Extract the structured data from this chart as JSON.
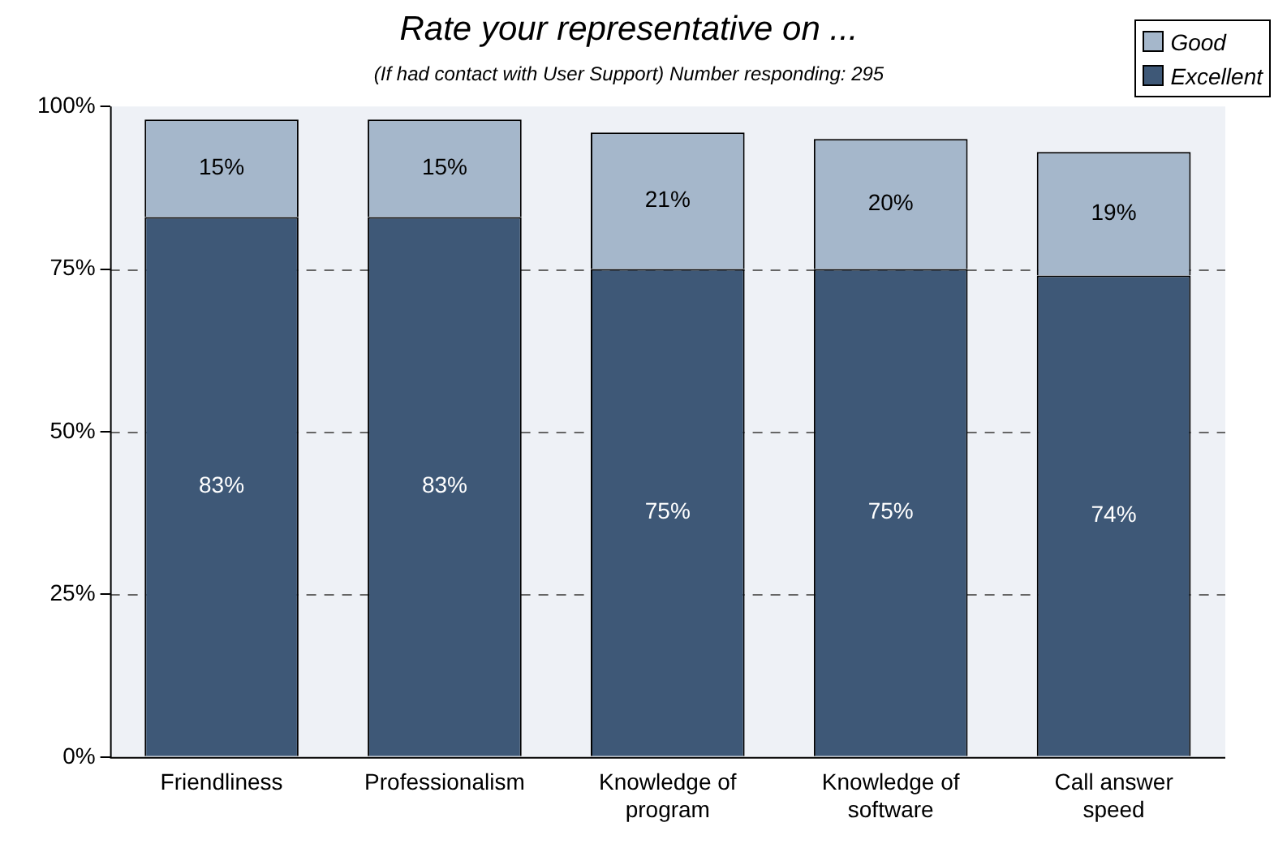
{
  "chart_data": {
    "type": "bar",
    "stacked": true,
    "title": "Rate your representative on ...",
    "subtitle": "(If had contact with User Support) Number responding: 295",
    "categories": [
      "Friendliness",
      "Professionalism",
      "Knowledge of program",
      "Knowledge of software",
      "Call answer speed"
    ],
    "series": [
      {
        "name": "Excellent",
        "color": "#3e5877",
        "values": [
          83,
          83,
          75,
          75,
          74
        ],
        "value_labels": [
          "83%",
          "83%",
          "75%",
          "75%",
          "74%"
        ]
      },
      {
        "name": "Good",
        "color": "#a5b7cb",
        "values": [
          15,
          15,
          21,
          20,
          19
        ],
        "value_labels": [
          "15%",
          "15%",
          "21%",
          "20%",
          "19%"
        ]
      }
    ],
    "ylim": [
      0,
      100
    ],
    "yticks": [
      {
        "value": 0,
        "label": "0%"
      },
      {
        "value": 25,
        "label": "25%"
      },
      {
        "value": 50,
        "label": "50%"
      },
      {
        "value": 75,
        "label": "75%"
      },
      {
        "value": 100,
        "label": "100%"
      }
    ],
    "grid": "y",
    "legend": "top right"
  }
}
